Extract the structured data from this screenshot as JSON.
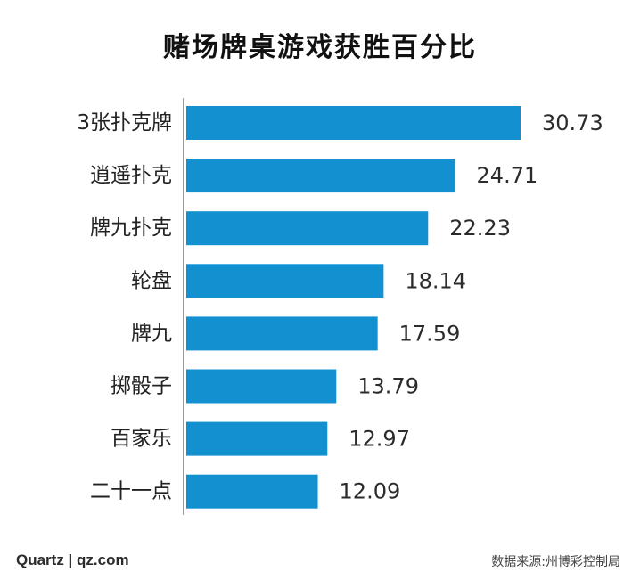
{
  "chart_data": {
    "type": "bar",
    "orientation": "horizontal",
    "title": "赌场牌桌游戏获胜百分比",
    "categories": [
      "3张扑克牌",
      "逍遥扑克",
      "牌九扑克",
      "轮盘",
      "牌九",
      "掷骰子",
      "百家乐",
      "二十一点"
    ],
    "values": [
      30.73,
      24.71,
      22.23,
      18.14,
      17.59,
      13.79,
      12.97,
      12.09
    ],
    "value_labels": [
      "30.73",
      "24.71",
      "22.23",
      "18.14",
      "17.59",
      "13.79",
      "12.97",
      "12.09"
    ],
    "xlim": [
      0,
      30.73
    ],
    "grid": false,
    "legend": "none",
    "bar_color": "#1290d0"
  },
  "footer": {
    "credit": "Quartz | qz.com",
    "source": "数据来源:州博彩控制局"
  }
}
